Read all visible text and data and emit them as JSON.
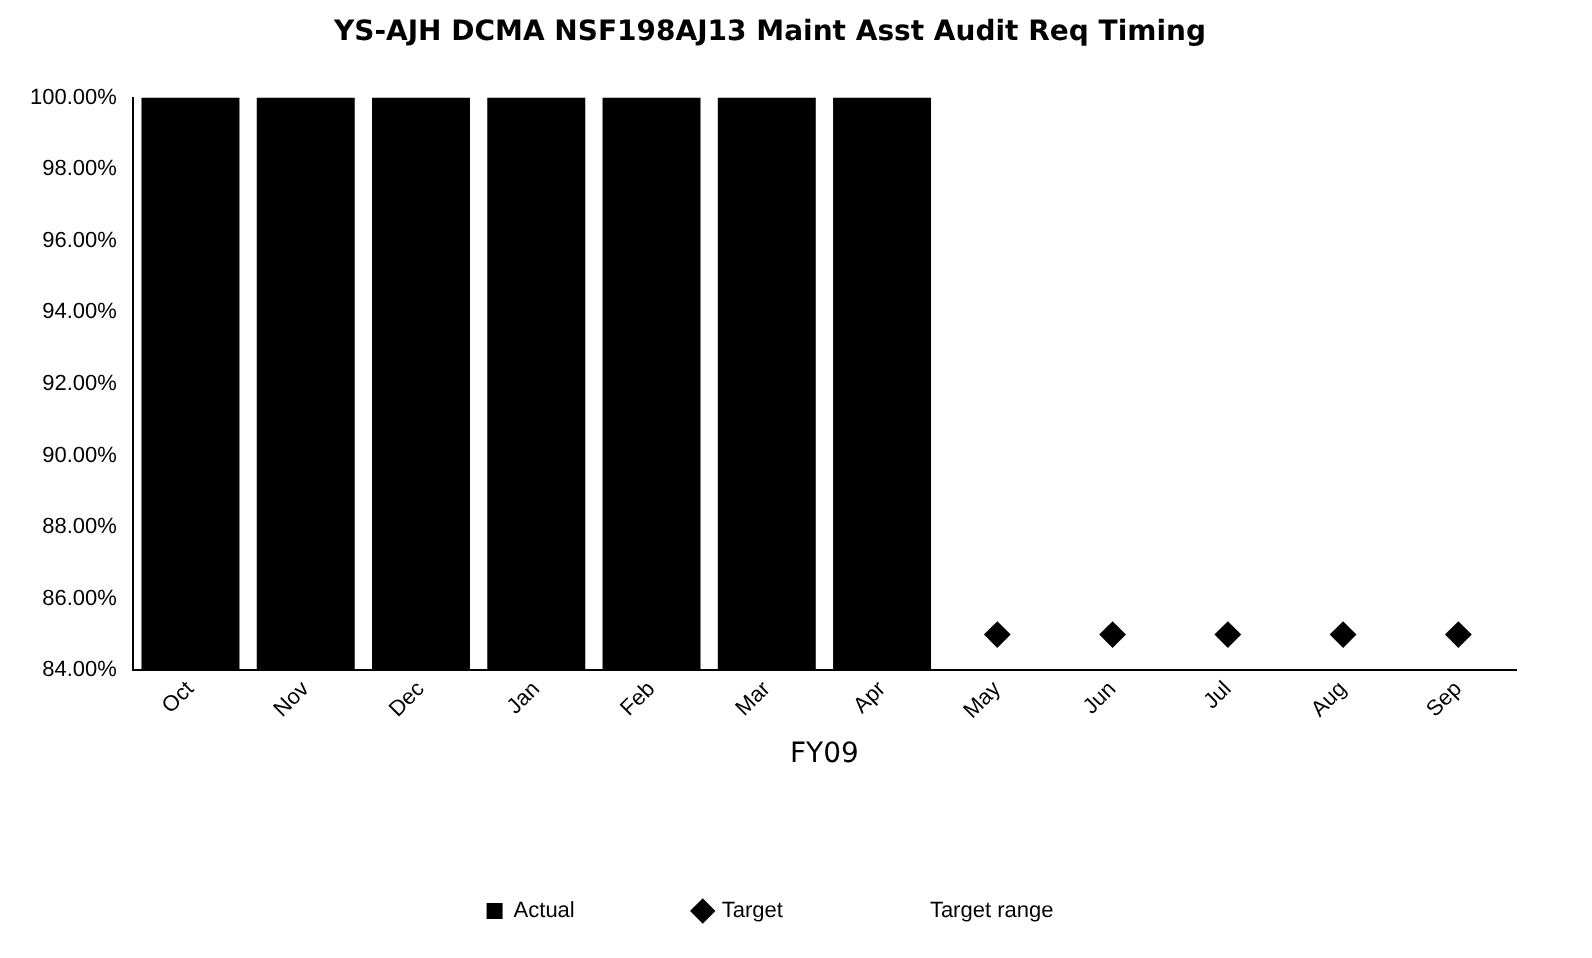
{
  "chart_data": {
    "type": "bar",
    "title": "YS-AJH DCMA NSF198AJ13 Maint Asst Audit Req Timing",
    "xlabel": "FY09",
    "categories": [
      "Oct",
      "Nov",
      "Dec",
      "Jan",
      "Feb",
      "Mar",
      "Apr",
      "May",
      "Jun",
      "Jul",
      "Aug",
      "Sep"
    ],
    "series": [
      {
        "name": "Actual",
        "color": "#000000",
        "values": [
          100,
          100,
          100,
          100,
          100,
          100,
          100,
          null,
          null,
          null,
          null,
          null
        ]
      },
      {
        "name": "Target",
        "type": "scatter",
        "color": "#000000",
        "marker": "diamond",
        "values": [
          null,
          null,
          null,
          null,
          null,
          null,
          null,
          85,
          85,
          85,
          85,
          85
        ]
      },
      {
        "name": "Target range",
        "type": "line",
        "values": [
          null,
          null,
          null,
          null,
          null,
          null,
          null,
          null,
          null,
          null,
          null,
          null
        ]
      }
    ],
    "ylim": [
      84,
      100
    ],
    "yticks": [
      {
        "value": 84,
        "label": "84.00%"
      },
      {
        "value": 86,
        "label": "86.00%"
      },
      {
        "value": 88,
        "label": "88.00%"
      },
      {
        "value": 90,
        "label": "90.00%"
      },
      {
        "value": 92,
        "label": "92.00%"
      },
      {
        "value": 94,
        "label": "94.00%"
      },
      {
        "value": 96,
        "label": "96.00%"
      },
      {
        "value": 98,
        "label": "98.00%"
      },
      {
        "value": 100,
        "label": "100.00%"
      }
    ],
    "grid": false,
    "legend": "bottom"
  }
}
